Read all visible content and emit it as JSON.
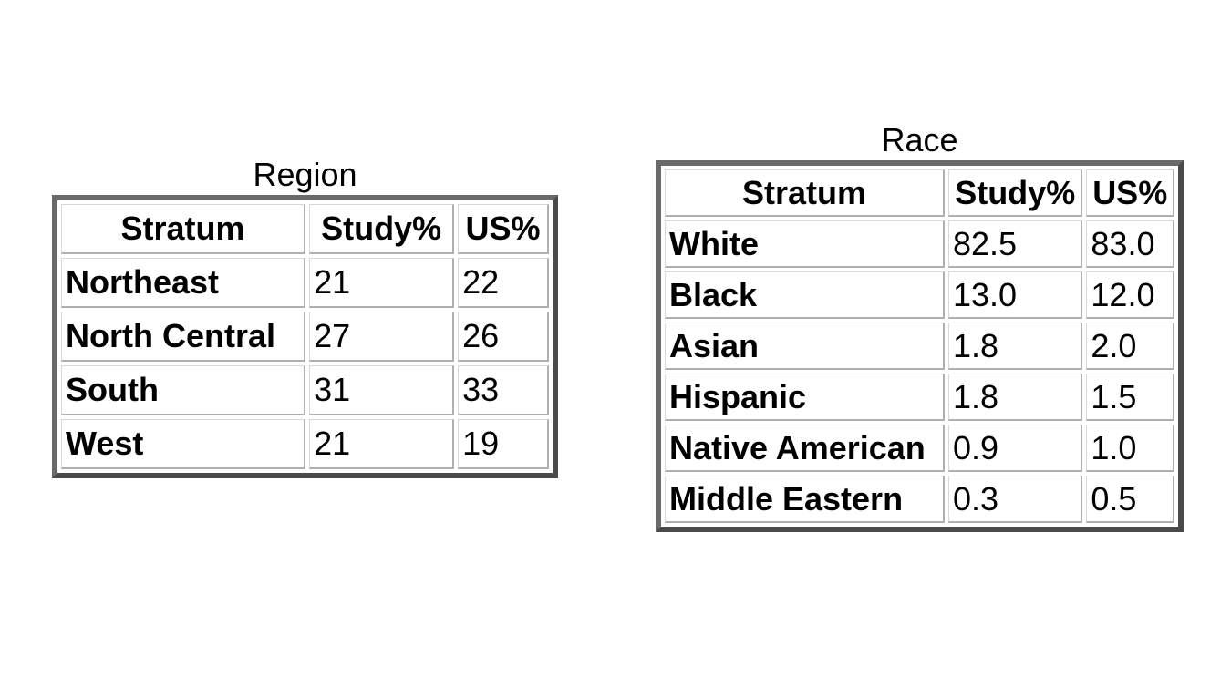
{
  "tables": [
    {
      "caption": "Region",
      "headers": [
        "Stratum",
        "Study%",
        "US%"
      ],
      "rows": [
        [
          "Northeast",
          "21",
          "22"
        ],
        [
          "North Central",
          "27",
          "26"
        ],
        [
          "South",
          "31",
          "33"
        ],
        [
          "West",
          "21",
          "19"
        ]
      ]
    },
    {
      "caption": "Race",
      "headers": [
        "Stratum",
        "Study%",
        "US%"
      ],
      "rows": [
        [
          "White",
          "82.5",
          "83.0"
        ],
        [
          "Black",
          "13.0",
          "12.0"
        ],
        [
          "Asian",
          "1.8",
          "2.0"
        ],
        [
          "Hispanic",
          "1.8",
          "1.5"
        ],
        [
          "Native American",
          "0.9",
          "1.0"
        ],
        [
          "Middle Eastern",
          "0.3",
          "0.5"
        ]
      ]
    }
  ]
}
